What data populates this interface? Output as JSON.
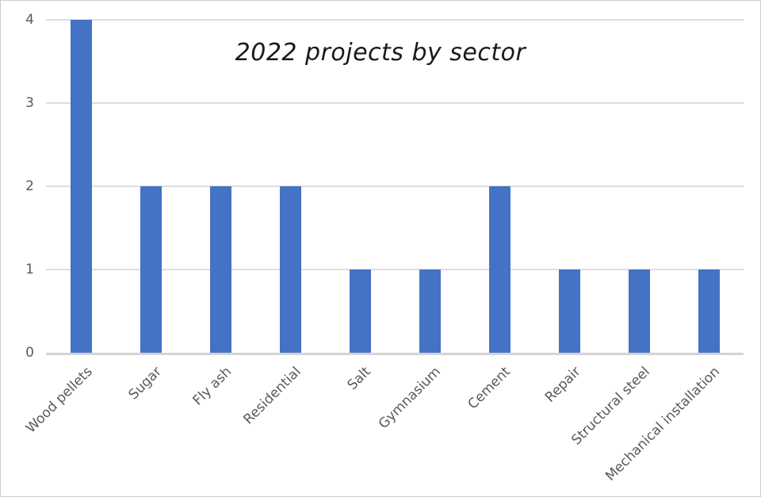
{
  "chart_data": {
    "type": "bar",
    "title": "2022 projects by sector",
    "categories": [
      "Wood pellets",
      "Sugar",
      "Fly ash",
      "Residential",
      "Salt",
      "Gymnasium",
      "Cement",
      "Repair",
      "Structural steel",
      "Mechanical installation"
    ],
    "values": [
      4,
      2,
      2,
      2,
      1,
      1,
      2,
      1,
      1,
      1
    ],
    "xlabel": "",
    "ylabel": "",
    "ylim": [
      0,
      4
    ],
    "yticks": [
      0,
      1,
      2,
      3,
      4
    ],
    "grid": true,
    "legend": false,
    "x_tick_rotation_deg": 45,
    "colors": {
      "bar": "#4472C4",
      "gridline": "#dedede",
      "axis_line": "#d4d4d4",
      "tick_label": "#595959",
      "title": "#1a1a1a",
      "background": "#ffffff",
      "border": "#cdcdcd"
    }
  }
}
